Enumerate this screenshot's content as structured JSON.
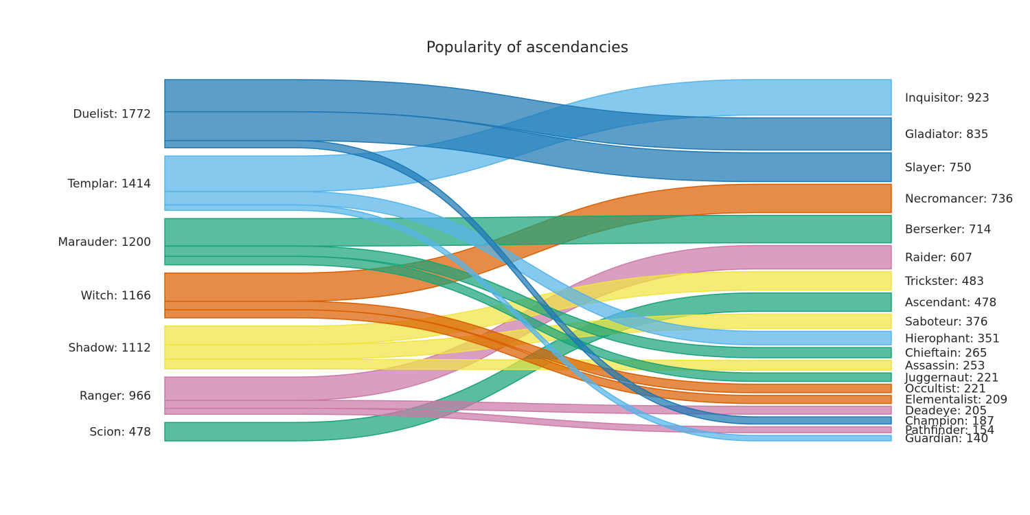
{
  "chart_data": {
    "type": "sankey",
    "title": "Popularity of ascendancies",
    "colors": {
      "Duelist": "#1f78b4",
      "Templar": "#56b4e9",
      "Marauder": "#1aa37a",
      "Witch": "#d95f02",
      "Shadow": "#f0e442",
      "Ranger": "#cc79a7",
      "Scion": "#1aa37a"
    },
    "sources": [
      {
        "name": "Duelist",
        "label": "Duelist: 1772",
        "value": 1772
      },
      {
        "name": "Templar",
        "label": "Templar: 1414",
        "value": 1414
      },
      {
        "name": "Marauder",
        "label": "Marauder: 1200",
        "value": 1200
      },
      {
        "name": "Witch",
        "label": "Witch: 1166",
        "value": 1166
      },
      {
        "name": "Shadow",
        "label": "Shadow: 1112",
        "value": 1112
      },
      {
        "name": "Ranger",
        "label": "Ranger: 966",
        "value": 966
      },
      {
        "name": "Scion",
        "label": "Scion: 478",
        "value": 478
      }
    ],
    "targets": [
      {
        "name": "Inquisitor",
        "label": "Inquisitor: 923",
        "value": 923,
        "source": "Templar"
      },
      {
        "name": "Gladiator",
        "label": "Gladiator: 835",
        "value": 835,
        "source": "Duelist"
      },
      {
        "name": "Slayer",
        "label": "Slayer: 750",
        "value": 750,
        "source": "Duelist"
      },
      {
        "name": "Necromancer",
        "label": "Necromancer: 736",
        "value": 736,
        "source": "Witch"
      },
      {
        "name": "Berserker",
        "label": "Berserker: 714",
        "value": 714,
        "source": "Marauder"
      },
      {
        "name": "Raider",
        "label": "Raider: 607",
        "value": 607,
        "source": "Ranger"
      },
      {
        "name": "Trickster",
        "label": "Trickster: 483",
        "value": 483,
        "source": "Shadow"
      },
      {
        "name": "Ascendant",
        "label": "Ascendant: 478",
        "value": 478,
        "source": "Scion"
      },
      {
        "name": "Saboteur",
        "label": "Saboteur: 376",
        "value": 376,
        "source": "Shadow"
      },
      {
        "name": "Hierophant",
        "label": "Hierophant: 351",
        "value": 351,
        "source": "Templar"
      },
      {
        "name": "Chieftain",
        "label": "Chieftain: 265",
        "value": 265,
        "source": "Marauder"
      },
      {
        "name": "Assassin",
        "label": "Assassin: 253",
        "value": 253,
        "source": "Shadow"
      },
      {
        "name": "Juggernaut",
        "label": "Juggernaut: 221",
        "value": 221,
        "source": "Marauder"
      },
      {
        "name": "Occultist",
        "label": "Occultist: 221",
        "value": 221,
        "source": "Witch"
      },
      {
        "name": "Elementalist",
        "label": "Elementalist: 209",
        "value": 209,
        "source": "Witch"
      },
      {
        "name": "Deadeye",
        "label": "Deadeye: 205",
        "value": 205,
        "source": "Ranger"
      },
      {
        "name": "Champion",
        "label": "Champion: 187",
        "value": 187,
        "source": "Duelist"
      },
      {
        "name": "Pathfinder",
        "label": "Pathfinder: 154",
        "value": 154,
        "source": "Ranger"
      },
      {
        "name": "Guardian",
        "label": "Guardian: 140",
        "value": 140,
        "source": "Templar"
      }
    ]
  }
}
